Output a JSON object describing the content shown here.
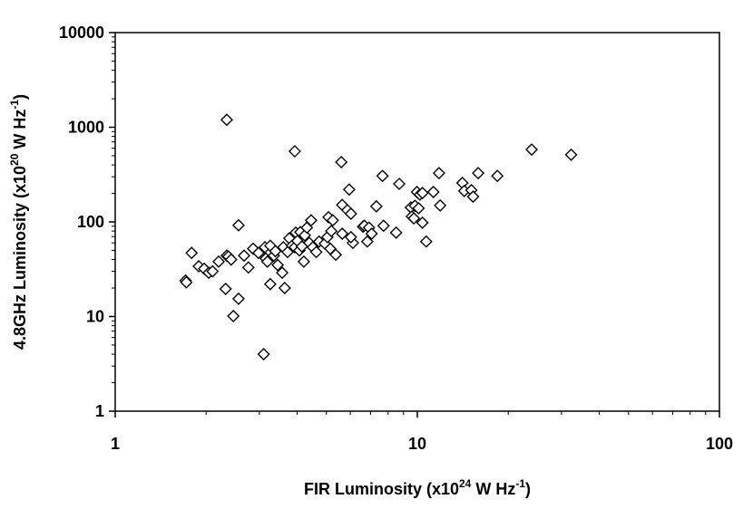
{
  "chart_data": {
    "type": "scatter",
    "log_x": true,
    "log_y": true,
    "minor_ticks": true,
    "xlabel": [
      "FIR Luminosity (x10",
      "24",
      " W Hz",
      "-1",
      ")"
    ],
    "ylabel": [
      "4.8GHz Luminosity (x10",
      "20",
      " W Hz",
      "-1",
      ")"
    ],
    "xlim": [
      1,
      100
    ],
    "xticks": [
      1,
      10,
      100
    ],
    "ylim": [
      1,
      10000
    ],
    "yticks": [
      1,
      10,
      100,
      1000,
      10000
    ],
    "color": "#000000",
    "x": [
      1.71,
      1.72,
      1.79,
      1.89,
      1.97,
      2.04,
      2.1,
      2.2,
      2.34,
      2.34,
      2.37,
      2.42,
      2.32,
      2.46,
      2.56,
      2.56,
      2.67,
      2.76,
      2.86,
      2.98,
      3.1,
      3.13,
      3.15,
      3.19,
      3.26,
      3.26,
      3.35,
      3.39,
      3.45,
      3.57,
      3.6,
      3.64,
      3.72,
      3.77,
      3.85,
      3.93,
      3.93,
      3.96,
      4.01,
      4.07,
      4.1,
      4.15,
      4.21,
      4.24,
      4.31,
      4.39,
      4.45,
      4.51,
      4.63,
      4.73,
      4.94,
      5.04,
      5.08,
      5.15,
      5.25,
      5.37,
      5.19,
      5.6,
      5.64,
      5.64,
      5.87,
      5.95,
      6.03,
      6.12,
      6.03,
      6.61,
      6.68,
      6.83,
      6.92,
      7.06,
      7.32,
      7.67,
      7.73,
      8.51,
      8.71,
      9.52,
      9.59,
      9.74,
      9.82,
      9.97,
      10.1,
      10.2,
      10.4,
      10.4,
      10.7,
      11.3,
      11.8,
      11.9,
      14.1,
      14.3,
      15.1,
      15.3,
      15.9,
      18.4,
      23.9,
      32.3
    ],
    "y": [
      24,
      23,
      47,
      34,
      32,
      29,
      30,
      38,
      1200,
      44,
      43,
      40,
      19.6,
      10.1,
      15.4,
      92,
      44,
      33,
      52,
      47,
      4.0,
      54,
      41,
      38,
      56,
      22,
      44,
      49,
      35,
      29,
      54,
      20,
      48,
      67,
      56,
      54,
      557,
      77,
      63,
      50,
      78,
      55,
      38,
      72,
      87,
      60,
      104,
      54,
      48,
      62,
      59,
      69,
      112,
      52,
      104,
      45,
      80,
      428,
      151,
      75,
      133,
      220,
      122,
      60,
      69,
      89,
      91,
      62,
      87,
      75,
      146,
      306,
      91,
      77,
      252,
      142,
      114,
      109,
      148,
      207,
      139,
      194,
      202,
      98,
      62,
      207,
      328,
      149,
      258,
      212,
      216,
      185,
      328,
      306,
      581,
      512
    ]
  }
}
